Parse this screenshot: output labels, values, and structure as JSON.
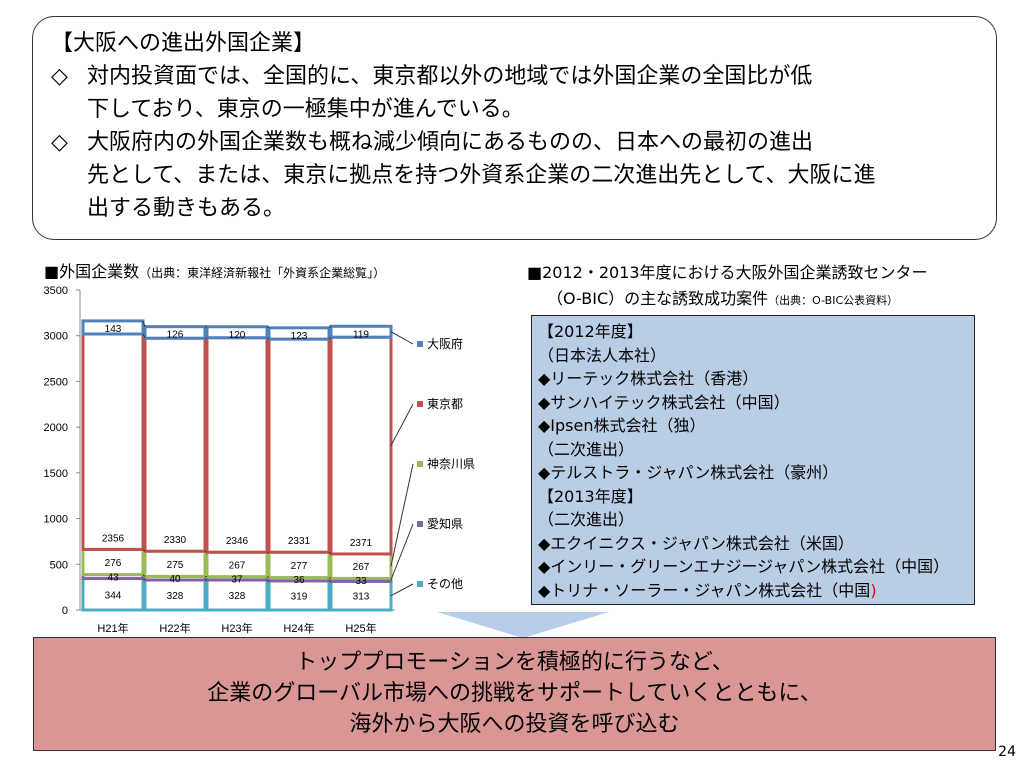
{
  "summary": {
    "title": "【大阪への進出外国企業】",
    "bullet_mark": "◇",
    "bullets": [
      {
        "line1": "対内投資面では、全国的に、東京都以外の地域では外国企業の全国比が低",
        "line2": "下しており、東京の一極集中が進んでいる。"
      },
      {
        "line1": "大阪府内の外国企業数も概ね減少傾向にあるものの、日本への最初の進出",
        "line2": "先として、または、東京に拠点を持つ外資系企業の二次進出先として、大阪に進",
        "line3": "出する動きもある。"
      }
    ]
  },
  "chart_heading": {
    "text": "■外国企業数",
    "source": "（出典：東洋経済新報社「外資系企業総覧」）"
  },
  "chart_data": {
    "type": "bar",
    "stacked": true,
    "categories": [
      "H21年",
      "H22年",
      "H23年",
      "H24年",
      "H25年"
    ],
    "series": [
      {
        "name": "その他",
        "values": [
          344,
          328,
          328,
          319,
          313
        ],
        "color": "#4bacc6"
      },
      {
        "name": "愛知県",
        "values": [
          43,
          40,
          37,
          36,
          33
        ],
        "color": "#8064a2"
      },
      {
        "name": "神奈川県",
        "values": [
          276,
          275,
          267,
          277,
          267
        ],
        "color": "#9bbb59"
      },
      {
        "name": "東京都",
        "values": [
          2356,
          2330,
          2346,
          2331,
          2371
        ],
        "color": "#c0504d"
      },
      {
        "name": "大阪府",
        "values": [
          143,
          126,
          120,
          123,
          119
        ],
        "color": "#4f81bd"
      }
    ],
    "ylim": [
      0,
      3500
    ],
    "yticks": [
      0,
      500,
      1000,
      1500,
      2000,
      2500,
      3000,
      3500
    ],
    "legend_position": "right",
    "grid": false
  },
  "cases_heading": {
    "line1": "■2012・2013年度における大阪外国企業誘致センター",
    "line2": "（O-BIC）の主な誘致成功案件",
    "source": "（出典：O-BIC公表資料）"
  },
  "cases": [
    {
      "text": "【2012年度】"
    },
    {
      "text": "（日本法人本社）"
    },
    {
      "text": "◆リーテック株式会社（香港）"
    },
    {
      "text": "◆サンハイテック株式会社（中国）"
    },
    {
      "text": "◆Ipsen株式会社（独）"
    },
    {
      "text": "（二次進出）"
    },
    {
      "text": "◆テルストラ・ジャパン株式会社（豪州）"
    },
    {
      "text": "【2013年度】"
    },
    {
      "text": "（二次進出）"
    },
    {
      "text": "◆エクイニクス・ジャパン株式会社（米国）"
    },
    {
      "text": "◆インリー・グリーンエナジージャパン株式会社（中国）"
    },
    {
      "text": "◆トリナ・ソーラー・ジャパン株式会社（中国",
      "red_suffix": ")"
    }
  ],
  "conclusion": {
    "lines": [
      "トッププロモーションを積極的に行うなど、",
      "企業のグローバル市場への挑戦をサポートしていくとともに、",
      "海外から大阪への投資を呼び込む"
    ]
  },
  "page_number": "24",
  "colors": {
    "cases_bg": "#b9cde5",
    "conclusion_bg": "#d99695",
    "arrow": "#b8cdea"
  }
}
